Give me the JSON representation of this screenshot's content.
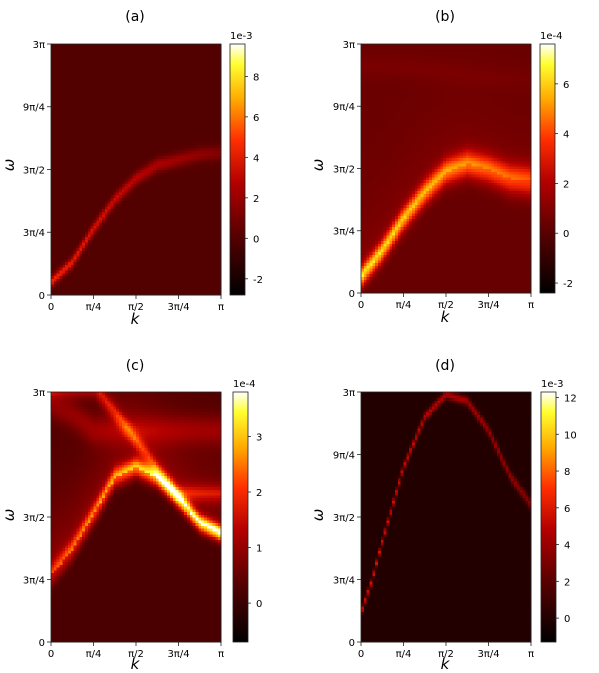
{
  "chart_data": [
    {
      "type": "heatmap",
      "title": "(a)",
      "xlabel": "k",
      "ylabel": "ω",
      "xlim": [
        0,
        3.14159
      ],
      "ylim": [
        0,
        9.42478
      ],
      "xticks": [
        {
          "v": 0,
          "label": "0"
        },
        {
          "v": 0.7854,
          "label": "π/4"
        },
        {
          "v": 1.5708,
          "label": "π/2"
        },
        {
          "v": 2.3562,
          "label": "3π/4"
        },
        {
          "v": 3.14159,
          "label": "π"
        }
      ],
      "yticks": [
        {
          "v": 0,
          "label": "0"
        },
        {
          "v": 2.3562,
          "label": "3π/4"
        },
        {
          "v": 4.7124,
          "label": "3π/2"
        },
        {
          "v": 7.0686,
          "label": "9π/4"
        },
        {
          "v": 9.42478,
          "label": "3π"
        }
      ],
      "colorbar": {
        "exponent": "1e-3",
        "min": -2.8,
        "max": 9.6,
        "ticks": [
          -2,
          0,
          2,
          4,
          6,
          8
        ]
      },
      "background": 0.0,
      "features": [
        {
          "points": [
            [
              0.0,
              0.5
            ],
            [
              0.393,
              1.25
            ],
            [
              0.785,
              2.5
            ],
            [
              1.178,
              3.6
            ],
            [
              1.571,
              4.4
            ],
            [
              1.963,
              4.9
            ],
            [
              2.356,
              5.1
            ],
            [
              2.749,
              5.3
            ],
            [
              3.142,
              5.35
            ]
          ],
          "peak": [
            4.5,
            1.4
          ],
          "width": [
            0.14,
            0.2
          ],
          "flank": 0.0
        }
      ]
    },
    {
      "type": "heatmap",
      "title": "(b)",
      "xlabel": "k",
      "ylabel": "ω",
      "xlim": [
        0,
        3.14159
      ],
      "ylim": [
        0,
        9.42478
      ],
      "xticks": [
        {
          "v": 0,
          "label": "0"
        },
        {
          "v": 0.7854,
          "label": "π/4"
        },
        {
          "v": 1.5708,
          "label": "π/2"
        },
        {
          "v": 2.3562,
          "label": "3π/4"
        },
        {
          "v": 3.14159,
          "label": "π"
        }
      ],
      "yticks": [
        {
          "v": 0,
          "label": "0"
        },
        {
          "v": 2.3562,
          "label": "3π/4"
        },
        {
          "v": 4.7124,
          "label": "3π/2"
        },
        {
          "v": 7.0686,
          "label": "9π/4"
        },
        {
          "v": 9.42478,
          "label": "3π"
        }
      ],
      "colorbar": {
        "exponent": "1e-4",
        "min": -2.4,
        "max": 7.6,
        "ticks": [
          -2,
          0,
          2,
          4,
          6
        ]
      },
      "background": 0.35,
      "features": [
        {
          "points": [
            [
              0.0,
              0.6
            ],
            [
              0.393,
              1.6
            ],
            [
              0.785,
              2.8
            ],
            [
              1.178,
              3.8
            ],
            [
              1.571,
              4.6
            ],
            [
              1.963,
              4.9
            ],
            [
              2.356,
              4.7
            ],
            [
              2.749,
              4.35
            ],
            [
              3.142,
              4.25
            ]
          ],
          "peak": [
            5.5,
            3.5
          ],
          "width": [
            0.28,
            0.42
          ],
          "flank": 0.8
        },
        {
          "points": [
            [
              0.6,
              8.6
            ],
            [
              1.2,
              8.5
            ],
            [
              1.8,
              8.3
            ],
            [
              2.4,
              8.2
            ],
            [
              3.142,
              8.1
            ]
          ],
          "peak": [
            0.4,
            0.2
          ],
          "width": [
            0.35,
            0.3
          ],
          "flank": 0
        }
      ]
    },
    {
      "type": "heatmap",
      "title": "(c)",
      "xlabel": "k",
      "ylabel": "ω",
      "xlim": [
        0,
        3.14159
      ],
      "ylim": [
        0,
        9.42478
      ],
      "xticks": [
        {
          "v": 0,
          "label": "0"
        },
        {
          "v": 0.7854,
          "label": "π/4"
        },
        {
          "v": 1.5708,
          "label": "π/2"
        },
        {
          "v": 2.3562,
          "label": "3π/4"
        },
        {
          "v": 3.14159,
          "label": "π"
        }
      ],
      "yticks": [
        {
          "v": 0,
          "label": "0"
        },
        {
          "v": 2.3562,
          "label": "3π/4"
        },
        {
          "v": 4.7124,
          "label": "3π/2"
        },
        {
          "v": 9.42478,
          "label": "3π"
        }
      ],
      "colorbar": {
        "exponent": "1e-4",
        "min": -0.7,
        "max": 3.8,
        "ticks": [
          0,
          1,
          2,
          3
        ]
      },
      "background": 0.2,
      "features": [
        {
          "points": [
            [
              0.0,
              2.5
            ],
            [
              0.393,
              3.5
            ],
            [
              0.785,
              4.8
            ],
            [
              1.178,
              6.2
            ],
            [
              1.571,
              6.6
            ],
            [
              1.963,
              6.2
            ],
            [
              2.356,
              5.4
            ],
            [
              2.749,
              4.5
            ],
            [
              3.142,
              4.1
            ]
          ],
          "peak": [
            1.2,
            3.3
          ],
          "width": [
            0.3,
            0.22
          ],
          "flank": 0.9
        },
        {
          "points": [
            [
              0.8,
              9.6
            ],
            [
              1.2,
              8.6
            ],
            [
              1.571,
              7.6
            ],
            [
              1.963,
              6.5
            ],
            [
              2.356,
              5.6
            ]
          ],
          "peak": [
            1.3,
            1.0
          ],
          "width": [
            0.25,
            0.25
          ],
          "flank": 0.25
        },
        {
          "points": [
            [
              0.0,
              9.0
            ],
            [
              0.4,
              8.6
            ],
            [
              0.8,
              8.0
            ]
          ],
          "peak": [
            0.7,
            0.7
          ],
          "width": [
            0.4,
            0.4
          ],
          "flank": 0
        }
      ]
    },
    {
      "type": "heatmap",
      "title": "(d)",
      "xlabel": "k",
      "ylabel": "ω",
      "xlim": [
        0,
        3.14159
      ],
      "ylim": [
        0,
        9.42478
      ],
      "xticks": [
        {
          "v": 0,
          "label": "0"
        },
        {
          "v": 0.7854,
          "label": "π/4"
        },
        {
          "v": 1.5708,
          "label": "π/2"
        },
        {
          "v": 2.3562,
          "label": "3π/4"
        },
        {
          "v": 3.14159,
          "label": "π"
        }
      ],
      "yticks": [
        {
          "v": 0,
          "label": "0"
        },
        {
          "v": 2.3562,
          "label": "3π/4"
        },
        {
          "v": 4.7124,
          "label": "3π/2"
        },
        {
          "v": 7.0686,
          "label": "9π/4"
        },
        {
          "v": 9.42478,
          "label": "3π"
        }
      ],
      "colorbar": {
        "exponent": "1e-3",
        "min": -1.3,
        "max": 12.3,
        "ticks": [
          0,
          2,
          4,
          6,
          8,
          10,
          12
        ]
      },
      "background": 0.0,
      "features": [
        {
          "points": [
            [
              0.0,
              1.1
            ],
            [
              0.196,
              2.3
            ],
            [
              0.393,
              3.8
            ],
            [
              0.589,
              5.2
            ],
            [
              0.785,
              6.6
            ],
            [
              1.178,
              8.5
            ],
            [
              1.571,
              9.35
            ],
            [
              1.963,
              9.1
            ],
            [
              2.356,
              8.0
            ],
            [
              2.749,
              6.3
            ],
            [
              3.142,
              5.2
            ]
          ],
          "peak": [
            6.0,
            3.4
          ],
          "width": [
            0.09,
            0.14
          ],
          "flank": 0.0
        }
      ]
    }
  ]
}
